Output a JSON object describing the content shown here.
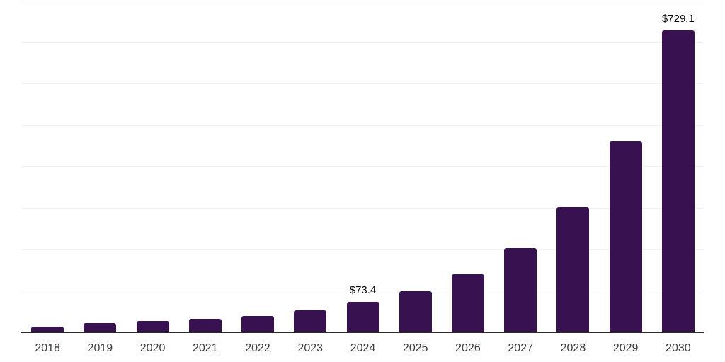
{
  "chart_data": {
    "type": "bar",
    "title": "",
    "xlabel": "",
    "ylabel": "",
    "categories": [
      "2018",
      "2019",
      "2020",
      "2021",
      "2022",
      "2023",
      "2024",
      "2025",
      "2026",
      "2027",
      "2028",
      "2029",
      "2030"
    ],
    "values": [
      13.5,
      21.5,
      27.8,
      32.5,
      40,
      53,
      73.4,
      99,
      140,
      203,
      303,
      462,
      729.1
    ],
    "data_labels": {
      "2024": "$73.4",
      "2030": "$729.1"
    },
    "ylim": [
      0,
      800
    ],
    "gridline_interval": 100,
    "grid": "horizontal",
    "legend": "none",
    "colors": {
      "bar": "#371150",
      "gridline": "#f2f2f2",
      "axis_line": "#2b2b2b",
      "tick_label": "#3d3d3d",
      "data_label": "#0c0c0c",
      "background": "#ffffff"
    }
  }
}
